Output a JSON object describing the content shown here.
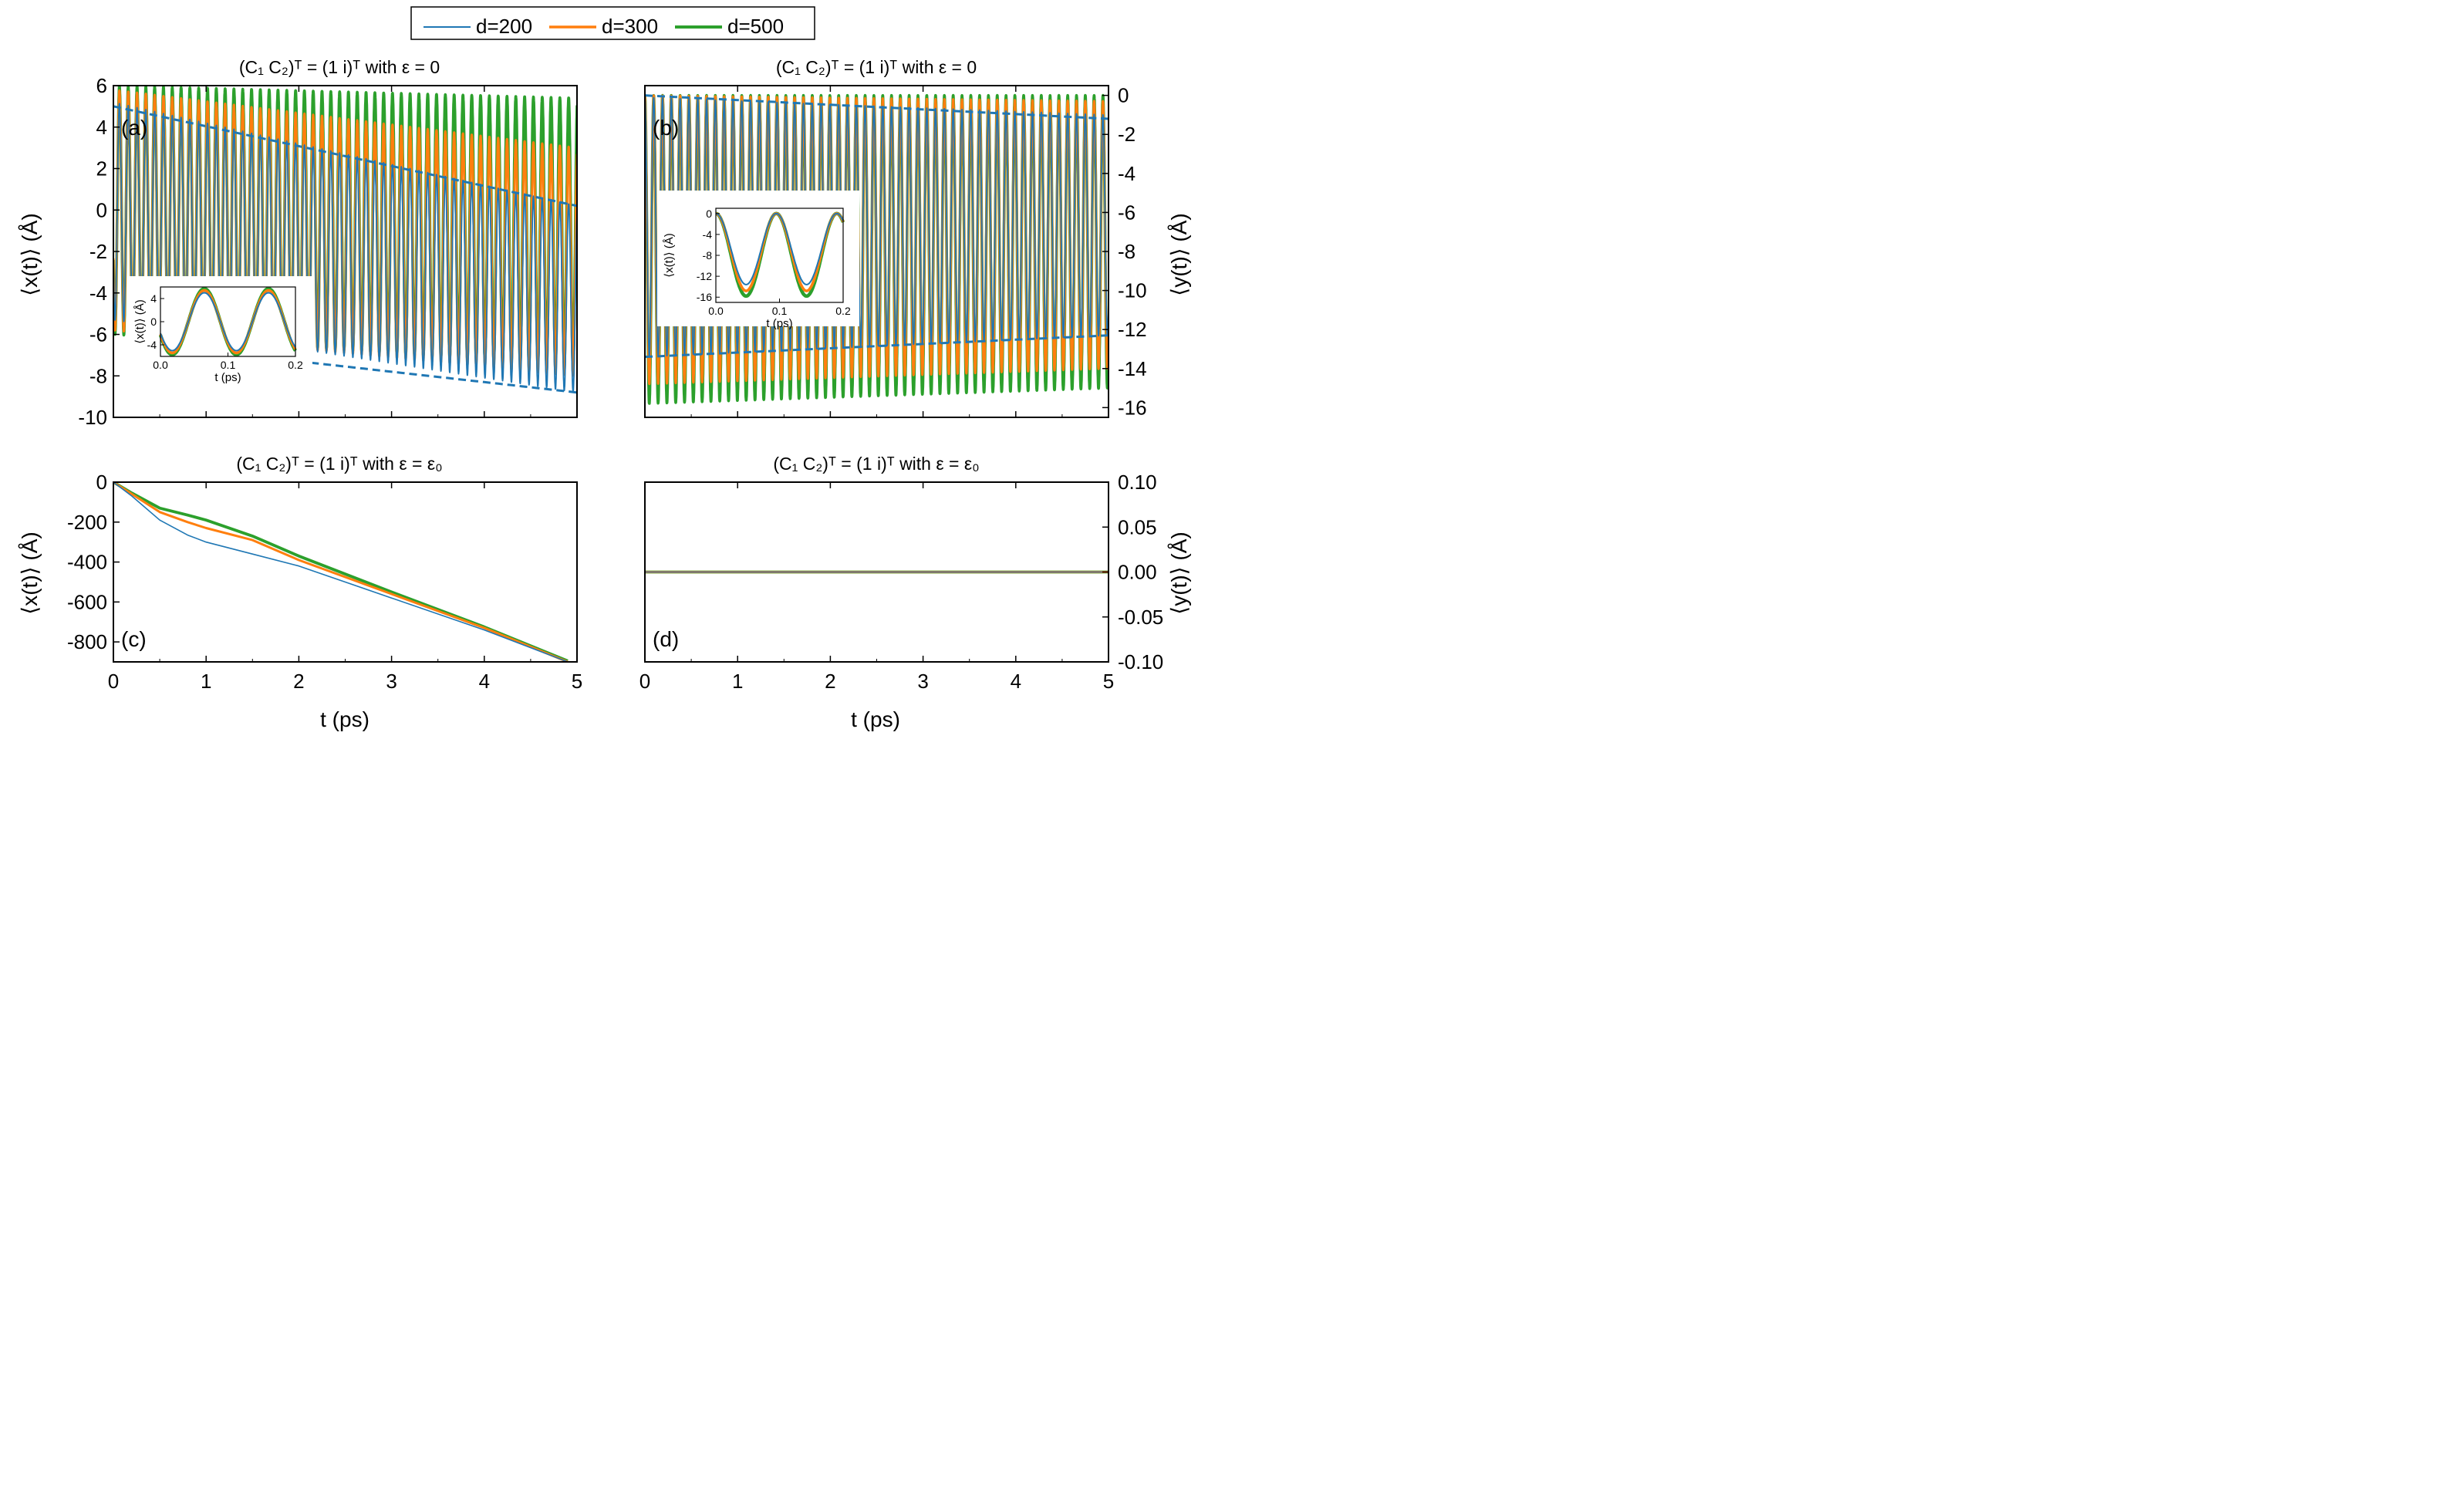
{
  "legend": {
    "entries": [
      {
        "label": "d=200",
        "color": "#1f77b4"
      },
      {
        "label": "d=300",
        "color": "#ff7f0e"
      },
      {
        "label": "d=500",
        "color": "#2ca02c"
      }
    ]
  },
  "chart_data": [
    {
      "id": "a",
      "type": "line",
      "panel_label": "(a)",
      "title": "(C₁ C₂)ᵀ = (1 i)ᵀ  with  ε = 0",
      "ylabel": "⟨x(t)⟩ (Å)",
      "xlabel": "",
      "xlim": [
        0,
        5
      ],
      "ylim": [
        -10,
        6
      ],
      "yticks": [
        "6",
        "4",
        "2",
        "0",
        "-2",
        "-4",
        "-6",
        "-8",
        "-10"
      ],
      "xticks_labeled": false,
      "oscillation_period_ps": 0.095,
      "series": [
        {
          "name": "d=200",
          "color": "#1f77b4",
          "upper_envelope": [
            [
              0,
              5.2
            ],
            [
              5,
              0.2
            ]
          ],
          "lower_envelope": [
            [
              0,
              -5.3
            ],
            [
              5,
              -8.8
            ]
          ],
          "start": -2.3
        },
        {
          "name": "d=300",
          "color": "#ff7f0e",
          "upper_envelope": [
            [
              0,
              5.8
            ],
            [
              5,
              3.0
            ]
          ],
          "lower_envelope": [
            [
              0,
              -5.8
            ],
            [
              5,
              -8.0
            ]
          ],
          "start": -2.3
        },
        {
          "name": "d=500",
          "color": "#2ca02c",
          "upper_envelope": [
            [
              0,
              6.0
            ],
            [
              5,
              5.4
            ]
          ],
          "lower_envelope": [
            [
              0,
              -6.0
            ],
            [
              5,
              -7.5
            ]
          ],
          "start": -2.3
        }
      ],
      "dashed_envelope": {
        "color": "#1f77b4",
        "upper": [
          [
            0,
            5.0
          ],
          [
            5,
            0.2
          ]
        ],
        "lower": [
          [
            2,
            -7.3
          ],
          [
            5,
            -8.8
          ]
        ]
      },
      "inset": {
        "xlabel": "t (ps)",
        "ylabel": "⟨x(t)⟩ (Å)",
        "xlim": [
          0,
          0.2
        ],
        "ylim": [
          -6,
          6
        ],
        "xticks": [
          "0.0",
          "0.1",
          "0.2"
        ],
        "yticks": [
          "4",
          "0",
          "-4"
        ],
        "period_ps": 0.095,
        "amplitudes": [
          5.0,
          5.4,
          5.7
        ]
      }
    },
    {
      "id": "b",
      "type": "line",
      "panel_label": "(b)",
      "title": "(C₁ C₂)ᵀ = (1 i)ᵀ  with  ε = 0",
      "ylabel": "⟨y(t)⟩ (Å)",
      "xlabel": "",
      "xlim": [
        0,
        5
      ],
      "ylim": [
        -16.5,
        0.5
      ],
      "yticks": [
        "0",
        "-2",
        "-4",
        "-6",
        "-8",
        "-10",
        "-12",
        "-14",
        "-16"
      ],
      "yaxis_side": "right",
      "xticks_labeled": false,
      "oscillation_period_ps": 0.095,
      "series": [
        {
          "name": "d=200",
          "color": "#1f77b4",
          "upper_envelope": [
            [
              0,
              -0.1
            ],
            [
              5,
              -1.0
            ]
          ],
          "lower_envelope": [
            [
              0,
              -13.4
            ],
            [
              5,
              -12.3
            ]
          ]
        },
        {
          "name": "d=300",
          "color": "#ff7f0e",
          "upper_envelope": [
            [
              0,
              0
            ],
            [
              5,
              -0.3
            ]
          ],
          "lower_envelope": [
            [
              0,
              -14.8
            ],
            [
              5,
              -14.0
            ]
          ]
        },
        {
          "name": "d=500",
          "color": "#2ca02c",
          "upper_envelope": [
            [
              0,
              0
            ],
            [
              5,
              0
            ]
          ],
          "lower_envelope": [
            [
              0,
              -15.8
            ],
            [
              5,
              -15.0
            ]
          ]
        }
      ],
      "dashed_envelope": {
        "color": "#1f77b4",
        "upper": [
          [
            0,
            0
          ],
          [
            5,
            -1.2
          ]
        ],
        "lower": [
          [
            0,
            -13.4
          ],
          [
            5,
            -12.3
          ]
        ]
      },
      "inset": {
        "xlabel": "t (ps)",
        "ylabel": "⟨x(t)⟩ (Å)",
        "xlim": [
          0,
          0.2
        ],
        "ylim": [
          -17,
          1
        ],
        "xticks": [
          "0.0",
          "0.1",
          "0.2"
        ],
        "yticks": [
          "0",
          "-4",
          "-8",
          "-12",
          "-16"
        ],
        "period_ps": 0.095,
        "minima": [
          -13.6,
          -14.8,
          -15.8
        ]
      }
    },
    {
      "id": "c",
      "type": "line",
      "panel_label": "(c)",
      "title": "(C₁ C₂)ᵀ = (1 i)ᵀ  with  ε = ε₀",
      "ylabel": "⟨x(t)⟩ (Å)",
      "xlabel": "t (ps)",
      "xlim": [
        0,
        5
      ],
      "ylim": [
        -900,
        0
      ],
      "yticks": [
        "0",
        "-200",
        "-400",
        "-600",
        "-800"
      ],
      "xticks": [
        "0",
        "1",
        "2",
        "3",
        "4",
        "5"
      ],
      "series": [
        {
          "name": "d=200",
          "color": "#1f77b4",
          "x": [
            0,
            0.2,
            0.5,
            0.8,
            1.0,
            1.5,
            2.0,
            3.0,
            4.0,
            4.9
          ],
          "y": [
            0,
            -70,
            -190,
            -265,
            -300,
            -360,
            -420,
            -580,
            -740,
            -900
          ]
        },
        {
          "name": "d=300",
          "color": "#ff7f0e",
          "x": [
            0,
            0.2,
            0.5,
            0.8,
            1.0,
            1.5,
            2.0,
            3.0,
            4.0,
            4.9
          ],
          "y": [
            0,
            -60,
            -150,
            -200,
            -230,
            -290,
            -390,
            -560,
            -730,
            -900
          ]
        },
        {
          "name": "d=500",
          "color": "#2ca02c",
          "x": [
            0,
            0.2,
            0.5,
            0.8,
            1.0,
            1.5,
            2.0,
            3.0,
            4.0,
            4.9
          ],
          "y": [
            0,
            -55,
            -130,
            -165,
            -190,
            -270,
            -370,
            -550,
            -725,
            -895
          ]
        }
      ]
    },
    {
      "id": "d",
      "type": "line",
      "panel_label": "(d)",
      "title": "(C₁ C₂)ᵀ = (1 i)ᵀ  with  ε = ε₀",
      "ylabel": "⟨y(t)⟩ (Å)",
      "xlabel": "t (ps)",
      "xlim": [
        0,
        5
      ],
      "ylim": [
        -0.1,
        0.1
      ],
      "yticks": [
        "0.10",
        "0.05",
        "0.00",
        "-0.05",
        "-0.10"
      ],
      "xticks": [
        "0",
        "1",
        "2",
        "3",
        "4",
        "5"
      ],
      "yaxis_side": "right",
      "series": [
        {
          "name": "d=200",
          "color": "#1f77b4",
          "x": [
            0,
            5
          ],
          "y": [
            0,
            0
          ]
        },
        {
          "name": "d=300",
          "color": "#ff7f0e",
          "x": [
            0,
            5
          ],
          "y": [
            0,
            0
          ]
        },
        {
          "name": "d=500",
          "color": "#2ca02c",
          "x": [
            0,
            5
          ],
          "y": [
            0,
            0
          ]
        }
      ]
    }
  ]
}
